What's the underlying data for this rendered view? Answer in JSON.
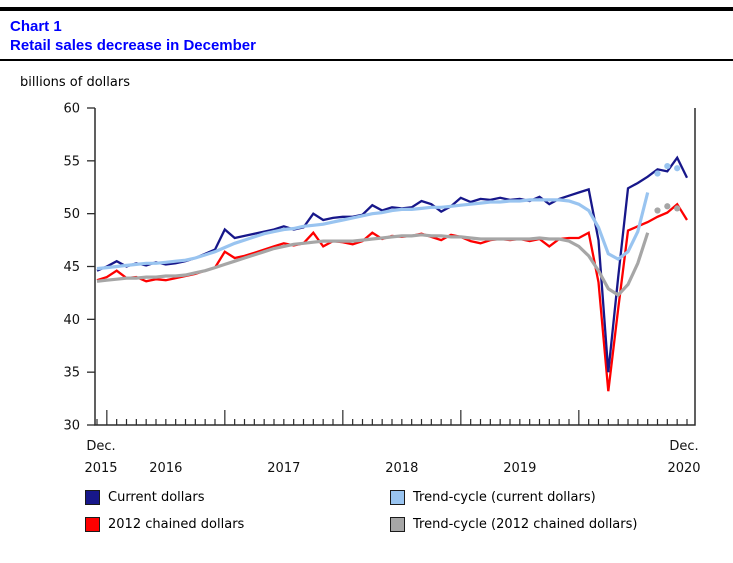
{
  "header": {
    "chart_label": "Chart 1",
    "title": "Retail sales decrease in December"
  },
  "unit_label": "billions of dollars",
  "chart_data": {
    "type": "line",
    "title": "Retail sales decrease in December",
    "ylabel": "billions of dollars",
    "ylim": [
      30,
      60
    ],
    "y_ticks": [
      30,
      35,
      40,
      45,
      50,
      55,
      60
    ],
    "x_unit": "month",
    "x_range": [
      "Dec 2015",
      "Dec 2020"
    ],
    "x_axis": {
      "start_label_line1": "Dec.",
      "start_label_line2": "2015",
      "year_labels": [
        "2016",
        "2017",
        "2018",
        "2019"
      ],
      "end_label_line1": "Dec.",
      "end_label_line2": "2020"
    },
    "grid": false,
    "legend_position": "bottom",
    "series": [
      {
        "id": "current",
        "label": "Current dollars",
        "color": "#17178a",
        "style": "raw",
        "values": [
          44.6,
          45.0,
          45.5,
          45.0,
          45.3,
          45.1,
          45.4,
          45.2,
          45.3,
          45.5,
          45.8,
          46.2,
          46.6,
          48.5,
          47.7,
          47.9,
          48.1,
          48.3,
          48.5,
          48.8,
          48.5,
          48.7,
          50.0,
          49.4,
          49.6,
          49.7,
          49.7,
          49.9,
          50.8,
          50.3,
          50.6,
          50.5,
          50.6,
          51.2,
          50.9,
          50.2,
          50.7,
          51.5,
          51.1,
          51.4,
          51.3,
          51.5,
          51.3,
          51.4,
          51.2,
          51.6,
          50.9,
          51.4,
          51.7,
          52.0,
          52.3,
          47.5,
          35.0,
          44.0,
          52.4,
          52.9,
          53.5,
          54.2,
          54.0,
          55.3,
          53.4
        ]
      },
      {
        "id": "chained",
        "label": "2012 chained dollars",
        "color": "#fe0000",
        "style": "raw",
        "values": [
          43.7,
          44.0,
          44.6,
          43.9,
          44.0,
          43.6,
          43.8,
          43.7,
          43.9,
          44.1,
          44.3,
          44.6,
          44.9,
          46.4,
          45.8,
          46.0,
          46.3,
          46.6,
          46.9,
          47.2,
          47.0,
          47.2,
          48.2,
          46.9,
          47.4,
          47.3,
          47.1,
          47.4,
          48.2,
          47.6,
          47.9,
          47.8,
          47.9,
          48.1,
          47.8,
          47.5,
          48.0,
          47.8,
          47.4,
          47.2,
          47.5,
          47.6,
          47.5,
          47.6,
          47.4,
          47.6,
          46.9,
          47.6,
          47.7,
          47.7,
          48.2,
          43.5,
          33.2,
          41.0,
          48.4,
          48.8,
          49.2,
          49.7,
          50.1,
          50.9,
          49.4
        ]
      },
      {
        "id": "trend_chained",
        "label": "Trend-cycle (2012 chained dollars)",
        "color": "#a6a6a6",
        "style": "trend",
        "values": [
          43.6,
          43.7,
          43.8,
          43.9,
          43.9,
          44.0,
          44.0,
          44.1,
          44.1,
          44.2,
          44.4,
          44.6,
          44.9,
          45.2,
          45.5,
          45.8,
          46.1,
          46.4,
          46.7,
          46.9,
          47.1,
          47.2,
          47.3,
          47.4,
          47.4,
          47.4,
          47.4,
          47.5,
          47.6,
          47.7,
          47.8,
          47.9,
          47.9,
          48.0,
          47.9,
          47.9,
          47.8,
          47.8,
          47.7,
          47.6,
          47.6,
          47.6,
          47.6,
          47.6,
          47.6,
          47.7,
          47.6,
          47.6,
          47.4,
          46.9,
          46.0,
          44.6,
          42.9,
          42.3,
          43.3,
          45.3,
          48.2
        ],
        "end_dots": [
          [
            57,
            50.3
          ],
          [
            58,
            50.7
          ],
          [
            59,
            50.5
          ]
        ]
      },
      {
        "id": "trend_current",
        "label": "Trend-cycle (current dollars)",
        "color": "#99c4f0",
        "style": "trend",
        "values": [
          44.8,
          44.9,
          45.0,
          45.1,
          45.2,
          45.3,
          45.3,
          45.4,
          45.5,
          45.6,
          45.8,
          46.1,
          46.4,
          46.8,
          47.2,
          47.5,
          47.8,
          48.1,
          48.3,
          48.5,
          48.6,
          48.8,
          48.9,
          49.0,
          49.2,
          49.4,
          49.6,
          49.8,
          50.0,
          50.1,
          50.3,
          50.4,
          50.4,
          50.5,
          50.6,
          50.6,
          50.7,
          50.8,
          50.9,
          51.0,
          51.1,
          51.1,
          51.2,
          51.2,
          51.3,
          51.3,
          51.3,
          51.3,
          51.2,
          50.9,
          50.3,
          48.7,
          46.2,
          45.7,
          46.4,
          48.3,
          52.0
        ],
        "end_dots": [
          [
            57,
            53.8
          ],
          [
            58,
            54.5
          ],
          [
            59,
            54.3
          ]
        ]
      }
    ]
  }
}
